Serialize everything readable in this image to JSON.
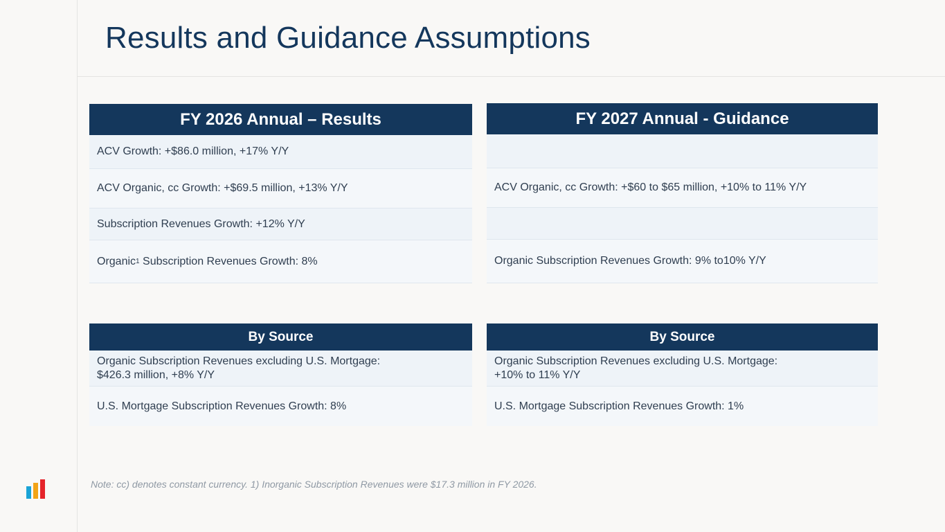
{
  "title": "Results and Guidance Assumptions",
  "results": {
    "header": "FY 2026 Annual – Results",
    "rows": [
      "ACV Growth: +$86.0 million, +17% Y/Y",
      "ACV Organic, cc Growth: +$69.5 million, +13% Y/Y",
      "Subscription Revenues Growth: +12% Y/Y"
    ],
    "organic_prefix": "Organic",
    "organic_sup": "1",
    "organic_suffix": " Subscription Revenues Growth: 8%"
  },
  "guidance": {
    "header": "FY 2027 Annual - Guidance",
    "rows": [
      "",
      "ACV Organic, cc Growth: +$60 to $65 million, +10%  to 11% Y/Y",
      "",
      "Organic Subscription Revenues Growth: 9% to10% Y/Y"
    ]
  },
  "results_source": {
    "header": "By Source",
    "row1_line1": "Organic Subscription Revenues excluding U.S. Mortgage:",
    "row1_line2": "$426.3 million, +8% Y/Y",
    "row2": "U.S. Mortgage Subscription Revenues Growth: 8%"
  },
  "guidance_source": {
    "header": "By Source",
    "row1_line1": "Organic Subscription Revenues excluding U.S. Mortgage:",
    "row1_line2": "+10% to 11% Y/Y",
    "row2": "U.S. Mortgage Subscription Revenues Growth: 1%"
  },
  "note": "Note: cc) denotes constant currency. 1) Inorganic Subscription Revenues were $17.3 million in FY 2026.",
  "logo": {
    "icon": "bar-chart-logo-icon",
    "colors": [
      "#1aa3d6",
      "#f2a417",
      "#e5242a"
    ]
  }
}
